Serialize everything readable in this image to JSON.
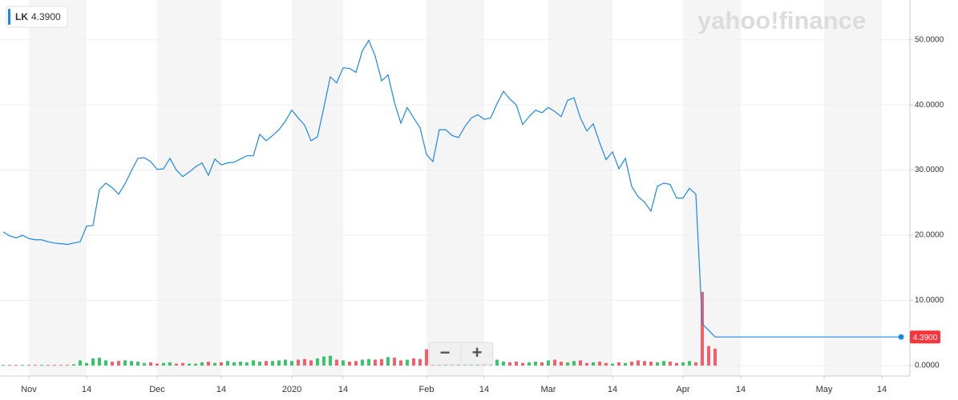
{
  "chart_data": {
    "type": "line",
    "watermark": "yahoo!finance",
    "controls": [
      "−",
      "+"
    ],
    "last_price_label": "4.3900",
    "categories": [
      null,
      null,
      null,
      null,
      "Nov",
      null,
      null,
      null,
      null,
      null,
      null,
      null,
      null,
      "14",
      null,
      null,
      null,
      null,
      null,
      null,
      null,
      null,
      null,
      null,
      "Dec",
      null,
      null,
      null,
      null,
      null,
      null,
      null,
      null,
      null,
      "14",
      null,
      null,
      null,
      null,
      null,
      null,
      null,
      null,
      null,
      null,
      "2020",
      null,
      null,
      null,
      null,
      null,
      null,
      null,
      "14",
      null,
      null,
      null,
      null,
      null,
      null,
      null,
      null,
      null,
      null,
      null,
      null,
      "Feb",
      null,
      null,
      null,
      null,
      null,
      null,
      null,
      null,
      "14",
      null,
      null,
      null,
      null,
      null,
      null,
      null,
      null,
      null,
      "Mar",
      null,
      null,
      null,
      null,
      null,
      null,
      null,
      null,
      null,
      "14",
      null,
      null,
      null,
      null,
      null,
      null,
      null,
      null,
      null,
      null,
      "Apr",
      null,
      null,
      null,
      null,
      null,
      null,
      null,
      null,
      "14",
      null,
      null,
      null,
      null,
      null,
      null,
      null,
      null,
      null,
      null,
      null,
      null,
      "May",
      null,
      null,
      null,
      null,
      null,
      null,
      null,
      null,
      "14",
      null,
      null,
      null
    ],
    "series": [
      {
        "name": "LK",
        "color": "#1e88e5",
        "values": [
          20.5,
          19.9,
          19.6,
          20.0,
          19.5,
          19.3,
          19.3,
          19.0,
          18.8,
          18.7,
          18.6,
          18.8,
          19.0,
          21.4,
          21.5,
          27.0,
          28.0,
          27.3,
          26.3,
          27.9,
          29.9,
          31.8,
          31.9,
          31.3,
          30.1,
          30.2,
          31.8,
          30.0,
          29.0,
          29.7,
          30.5,
          31.1,
          29.2,
          31.7,
          30.8,
          31.1,
          31.2,
          31.7,
          32.2,
          32.2,
          35.5,
          34.5,
          35.3,
          36.2,
          37.5,
          39.2,
          38.0,
          36.9,
          34.5,
          35.1,
          39.6,
          44.3,
          43.4,
          45.7,
          45.6,
          45.0,
          48.3,
          49.9,
          47.5,
          43.7,
          44.6,
          40.4,
          37.2,
          39.6,
          38.0,
          36.5,
          32.4,
          31.3,
          36.2,
          36.2,
          35.3,
          35.0,
          36.7,
          38.0,
          38.5,
          37.8,
          38.0,
          40.2,
          42.1,
          40.9,
          40.0,
          37.0,
          38.2,
          39.2,
          38.8,
          39.6,
          39.0,
          38.2,
          40.7,
          41.1,
          38.0,
          36.0,
          37.1,
          34.2,
          31.6,
          32.8,
          30.2,
          31.8,
          27.5,
          25.9,
          25.1,
          23.7,
          27.5,
          28.0,
          27.8,
          25.7,
          25.7,
          27.2,
          26.3,
          6.4,
          5.4,
          4.39,
          null,
          null,
          null,
          null,
          null,
          null,
          null,
          null,
          null,
          null,
          null,
          null,
          null,
          null,
          null,
          null,
          null,
          null,
          null,
          null,
          null,
          null,
          null,
          null,
          null,
          null,
          null,
          null,
          null
        ]
      }
    ],
    "volume": {
      "up_color": "#3cc46a",
      "down_color": "#f2606b",
      "values": [
        0.1,
        0.1,
        0.1,
        0.1,
        0.1,
        0.1,
        0.1,
        0.1,
        0.1,
        0.1,
        0.1,
        0.2,
        0.8,
        0.4,
        1.1,
        1.2,
        0.8,
        0.6,
        0.7,
        0.8,
        0.7,
        0.6,
        0.4,
        0.5,
        0.3,
        0.4,
        0.5,
        0.3,
        0.4,
        0.3,
        0.3,
        0.5,
        0.6,
        0.4,
        0.5,
        0.7,
        0.5,
        0.6,
        0.5,
        0.8,
        0.6,
        0.7,
        0.7,
        0.8,
        0.9,
        0.7,
        0.9,
        1.0,
        0.8,
        1.1,
        1.4,
        1.5,
        0.9,
        0.8,
        0.6,
        0.7,
        0.9,
        1.0,
        0.9,
        1.0,
        1.3,
        1.2,
        0.8,
        0.9,
        1.1,
        1.0,
        2.5,
        0.9,
        1.3,
        1.2,
        0.8,
        0.6,
        0.7,
        0.8,
        0.6,
        0.5,
        0.7,
        0.9,
        0.6,
        0.5,
        0.6,
        0.4,
        0.5,
        0.6,
        0.5,
        0.8,
        0.9,
        0.6,
        0.5,
        0.7,
        0.8,
        0.4,
        0.5,
        0.6,
        0.4,
        0.3,
        0.5,
        0.4,
        0.6,
        0.8,
        0.7,
        0.6,
        0.5,
        0.7,
        0.6,
        0.4,
        0.5,
        0.7,
        0.5,
        11.3,
        3.0,
        2.6,
        null,
        null,
        null,
        null,
        null,
        null,
        null,
        null,
        null,
        null,
        null,
        null,
        null,
        null,
        null,
        null,
        null,
        null,
        null,
        null,
        null,
        null,
        null,
        null,
        null,
        null,
        null,
        null,
        null
      ]
    },
    "ylim": [
      -1.6,
      56.1
    ],
    "yticks": [
      {
        "value": 0,
        "label": "0.0000"
      },
      {
        "value": 10,
        "label": "10.0000"
      },
      {
        "value": 20,
        "label": "20.0000"
      },
      {
        "value": 30,
        "label": "30.0000"
      },
      {
        "value": 40,
        "label": "40.0000"
      },
      {
        "value": 50,
        "label": "50.0000"
      }
    ],
    "grid": true
  }
}
